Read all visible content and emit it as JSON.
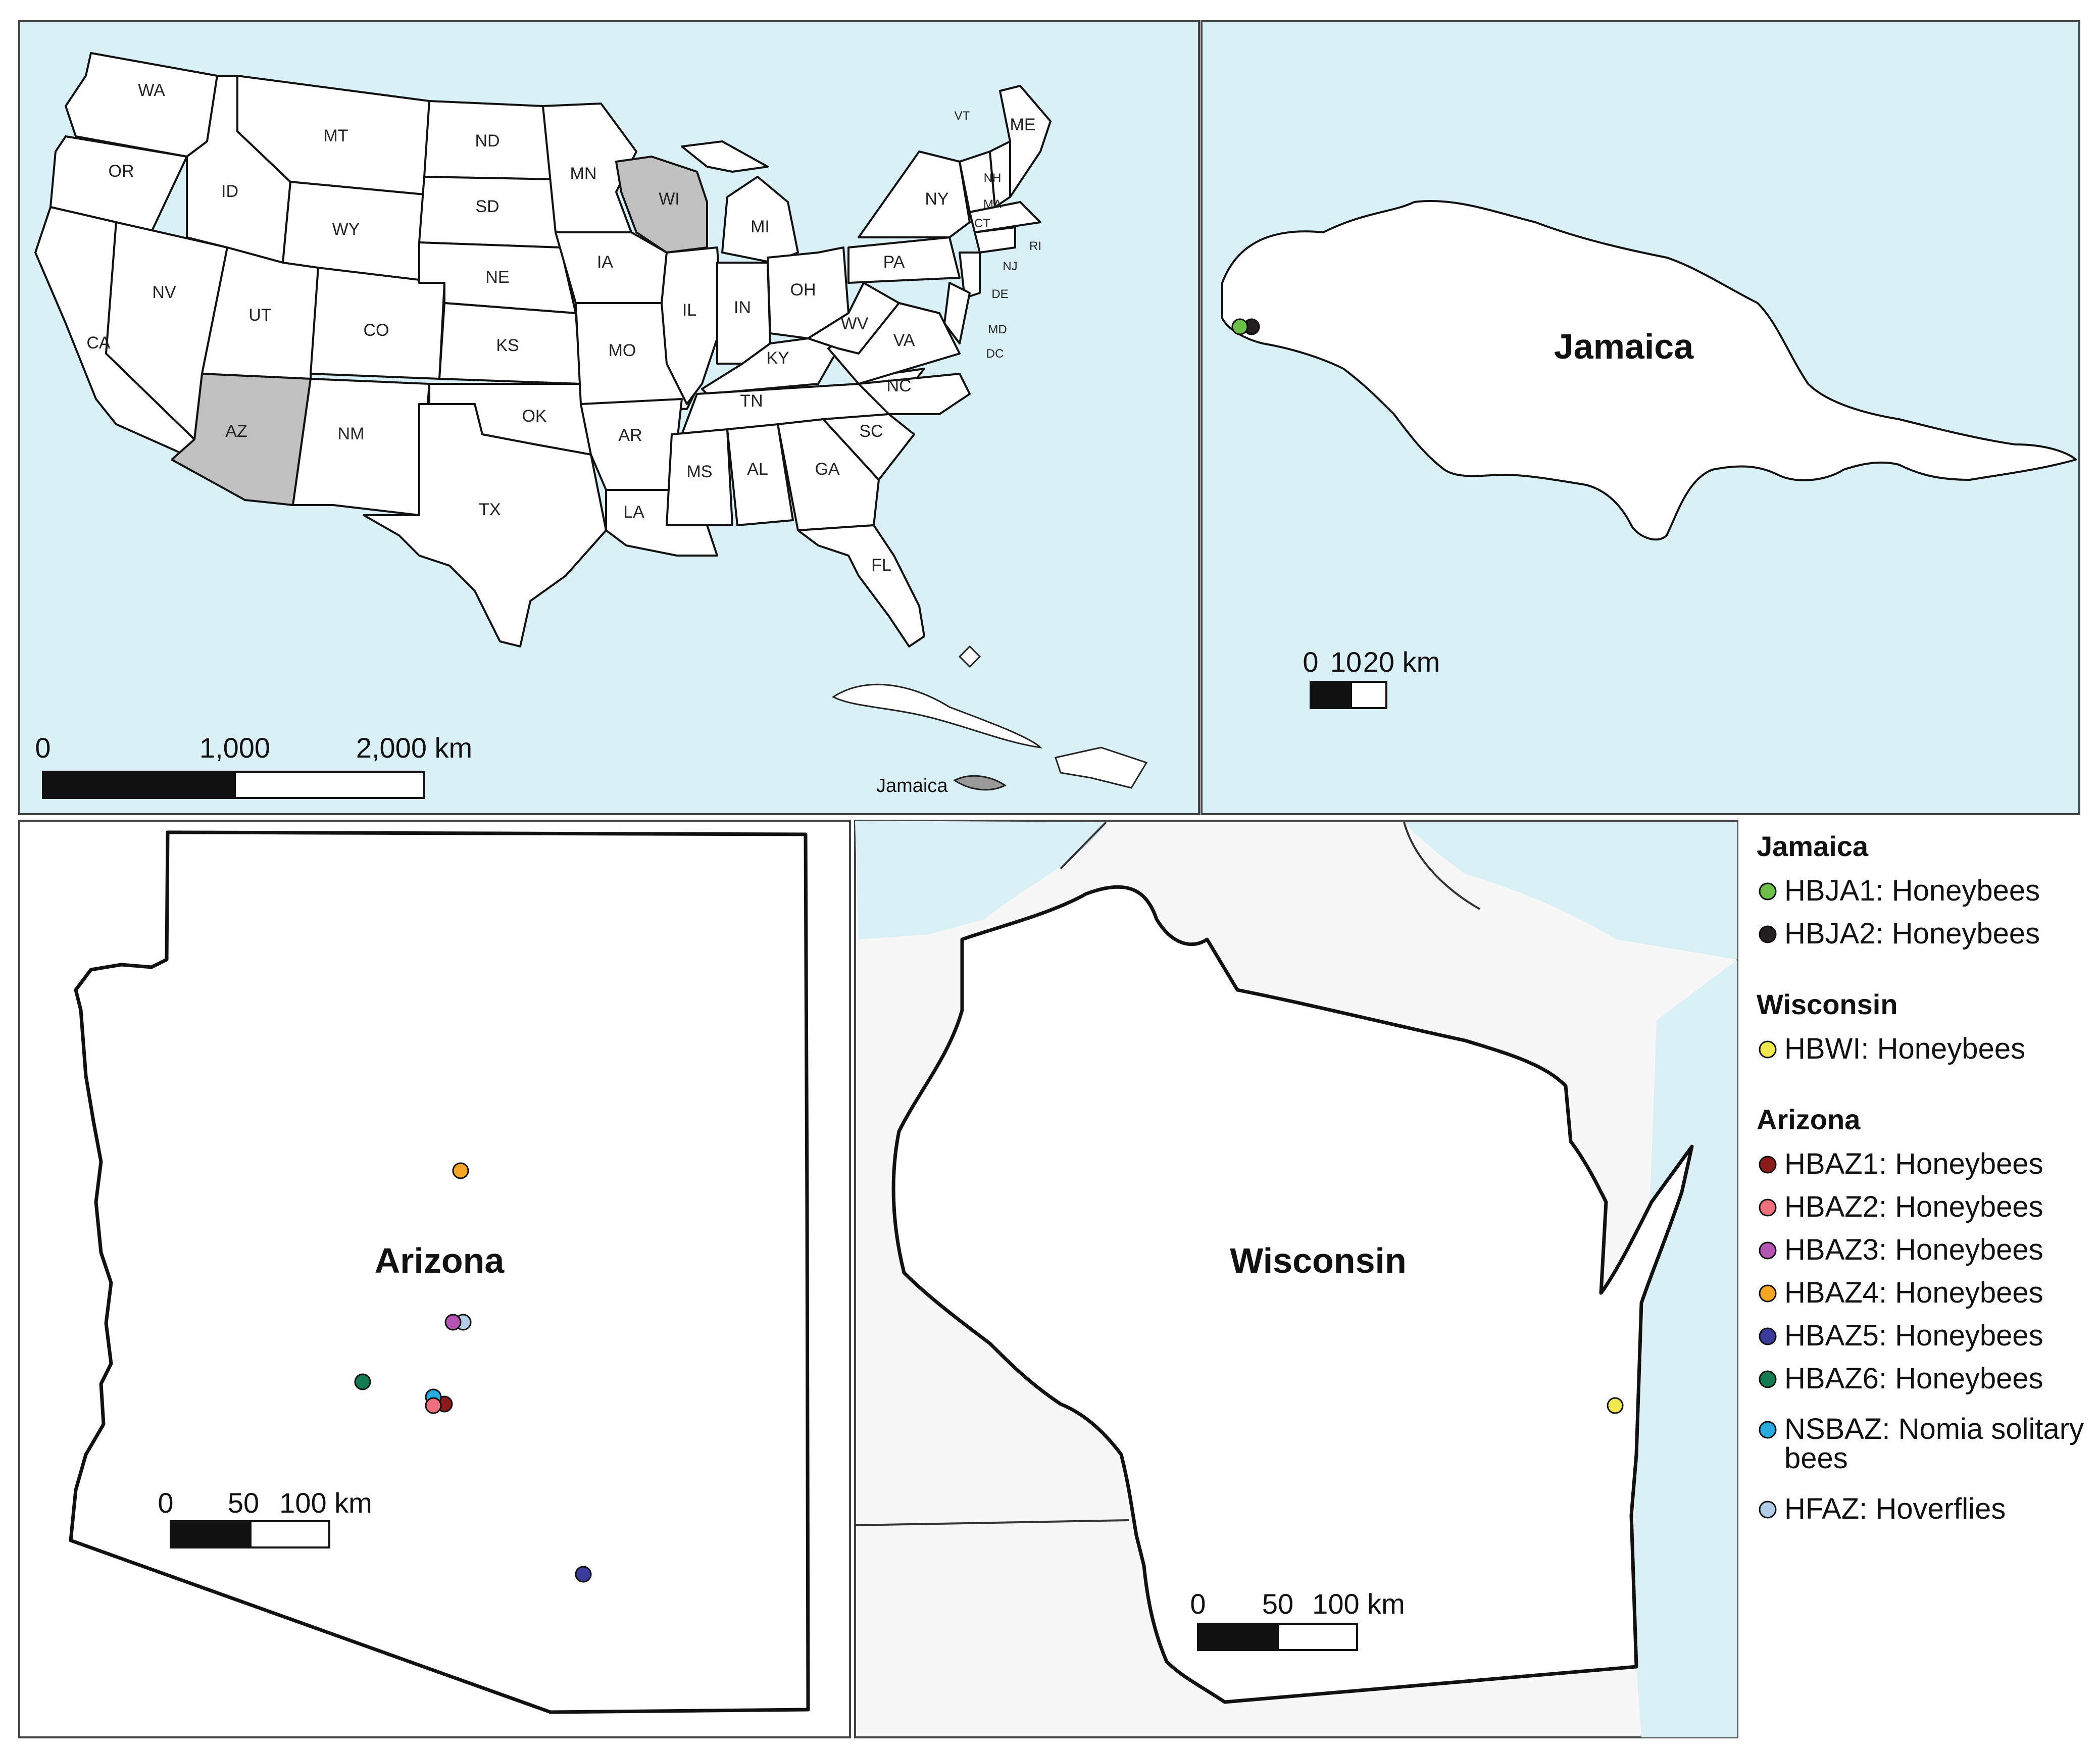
{
  "usa_map": {
    "states": [
      {
        "code": "WA",
        "highlighted": false
      },
      {
        "code": "OR",
        "highlighted": false
      },
      {
        "code": "CA",
        "highlighted": false
      },
      {
        "code": "ID",
        "highlighted": false
      },
      {
        "code": "NV",
        "highlighted": false
      },
      {
        "code": "MT",
        "highlighted": false
      },
      {
        "code": "WY",
        "highlighted": false
      },
      {
        "code": "UT",
        "highlighted": false
      },
      {
        "code": "AZ",
        "highlighted": true
      },
      {
        "code": "CO",
        "highlighted": false
      },
      {
        "code": "NM",
        "highlighted": false
      },
      {
        "code": "ND",
        "highlighted": false
      },
      {
        "code": "SD",
        "highlighted": false
      },
      {
        "code": "NE",
        "highlighted": false
      },
      {
        "code": "KS",
        "highlighted": false
      },
      {
        "code": "OK",
        "highlighted": false
      },
      {
        "code": "TX",
        "highlighted": false
      },
      {
        "code": "MN",
        "highlighted": false
      },
      {
        "code": "IA",
        "highlighted": false
      },
      {
        "code": "MO",
        "highlighted": false
      },
      {
        "code": "AR",
        "highlighted": false
      },
      {
        "code": "LA",
        "highlighted": false
      },
      {
        "code": "WI",
        "highlighted": true
      },
      {
        "code": "IL",
        "highlighted": false
      },
      {
        "code": "MI",
        "highlighted": false
      },
      {
        "code": "IN",
        "highlighted": false
      },
      {
        "code": "OH",
        "highlighted": false
      },
      {
        "code": "KY",
        "highlighted": false
      },
      {
        "code": "TN",
        "highlighted": false
      },
      {
        "code": "MS",
        "highlighted": false
      },
      {
        "code": "AL",
        "highlighted": false
      },
      {
        "code": "GA",
        "highlighted": false
      },
      {
        "code": "FL",
        "highlighted": false
      },
      {
        "code": "SC",
        "highlighted": false
      },
      {
        "code": "NC",
        "highlighted": false
      },
      {
        "code": "VA",
        "highlighted": false
      },
      {
        "code": "WV",
        "highlighted": false
      },
      {
        "code": "PA",
        "highlighted": false
      },
      {
        "code": "NY",
        "highlighted": false
      },
      {
        "code": "VT",
        "highlighted": false
      },
      {
        "code": "NH",
        "highlighted": false
      },
      {
        "code": "ME",
        "highlighted": false
      },
      {
        "code": "MA",
        "highlighted": false
      },
      {
        "code": "CT",
        "highlighted": false
      },
      {
        "code": "RI",
        "highlighted": false
      },
      {
        "code": "NJ",
        "highlighted": false
      },
      {
        "code": "DE",
        "highlighted": false
      },
      {
        "code": "MD",
        "highlighted": false
      },
      {
        "code": "DC",
        "highlighted": false
      }
    ],
    "inset_label": "Jamaica",
    "scale_labels": [
      "0",
      "1,000",
      "2,000 km"
    ]
  },
  "jamaica_map": {
    "title": "Jamaica",
    "scale_labels": [
      "0",
      "10",
      "20 km"
    ]
  },
  "arizona_map": {
    "title": "Arizona",
    "scale_labels": [
      "0",
      "50",
      "100 km"
    ]
  },
  "wisconsin_map": {
    "title": "Wisconsin",
    "scale_labels": [
      "0",
      "50",
      "100 km"
    ]
  },
  "legend": {
    "groups": [
      {
        "heading": "Jamaica",
        "items": [
          {
            "label": "HBJA1: Honeybees",
            "color": "#6cc04a"
          },
          {
            "label": "HBJA2: Honeybees",
            "color": "#231f20"
          }
        ]
      },
      {
        "heading": "Wisconsin",
        "items": [
          {
            "label": "HBWI: Honeybees",
            "color": "#f2e94e"
          }
        ]
      },
      {
        "heading": "Arizona",
        "items": [
          {
            "label": "HBAZ1: Honeybees",
            "color": "#8b1a1a"
          },
          {
            "label": "HBAZ2: Honeybees",
            "color": "#ef6f7f"
          },
          {
            "label": "HBAZ3: Honeybees",
            "color": "#b454b4"
          },
          {
            "label": "HBAZ4: Honeybees",
            "color": "#f5a623"
          },
          {
            "label": "HBAZ5: Honeybees",
            "color": "#3b3b9b"
          },
          {
            "label": "HBAZ6: Honeybees",
            "color": "#147a52"
          },
          {
            "label": "NSBAZ: Nomia solitary bees",
            "color": "#29abe2"
          },
          {
            "label": "HFAZ: Hoverflies",
            "color": "#b3cde8"
          }
        ]
      }
    ]
  },
  "colors": {
    "water": "#daf0f7",
    "land": "#ffffff",
    "highlight": "#c0c0c0",
    "border": "#111111"
  }
}
